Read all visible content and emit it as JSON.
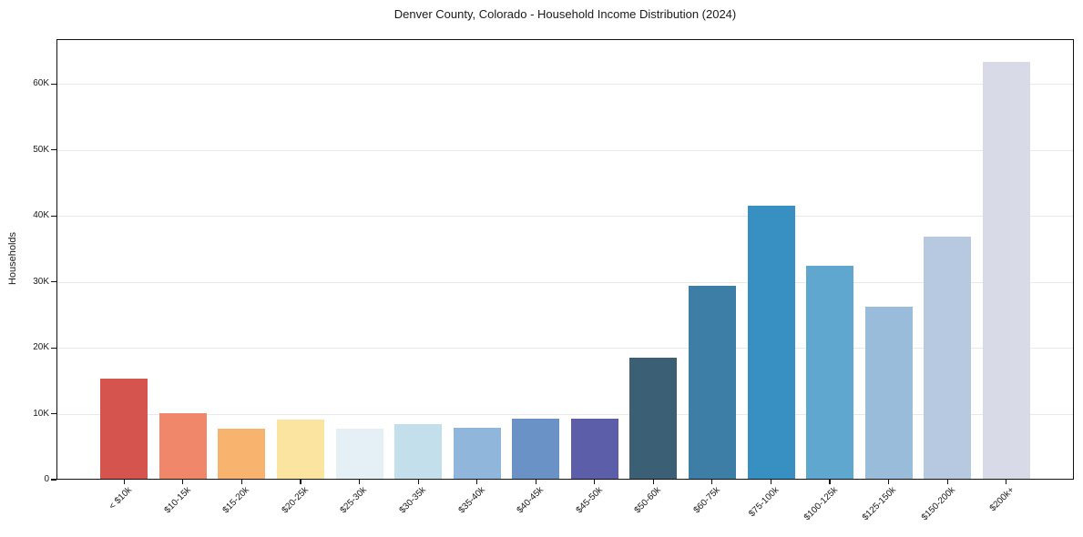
{
  "chart_data": {
    "type": "bar",
    "title": "Denver County, Colorado - Household Income Distribution (2024)",
    "xlabel": "",
    "ylabel": "Households",
    "categories": [
      "< $10k",
      "$10-15k",
      "$15-20k",
      "$20-25k",
      "$25-30k",
      "$30-35k",
      "$35-40k",
      "$40-45k",
      "$45-50k",
      "$50-60k",
      "$60-75k",
      "$75-100k",
      "$100-125k",
      "$125-150k",
      "$150-200k",
      "$200k+"
    ],
    "values": [
      15300,
      10100,
      7700,
      9100,
      7800,
      8400,
      7900,
      9300,
      9200,
      18500,
      29400,
      41500,
      32500,
      26200,
      36900,
      63300
    ],
    "bar_colors": [
      "#d6544e",
      "#f0876a",
      "#f8b36e",
      "#fbe3a0",
      "#e4f0f5",
      "#c2dfeb",
      "#90b7db",
      "#6a92c6",
      "#5c5ea9",
      "#3b5f74",
      "#3d7ea6",
      "#388fc2",
      "#5fa7cf",
      "#98bcda",
      "#b7c9e1",
      "#d9dae8"
    ],
    "yticks": [
      {
        "value": 0,
        "label": "0"
      },
      {
        "value": 10000,
        "label": "10K"
      },
      {
        "value": 20000,
        "label": "20K"
      },
      {
        "value": 30000,
        "label": "30K"
      },
      {
        "value": 40000,
        "label": "40K"
      },
      {
        "value": 50000,
        "label": "50K"
      },
      {
        "value": 60000,
        "label": "60K"
      }
    ],
    "ylim": [
      0,
      66800
    ],
    "grid": "horizontal",
    "legend": "none",
    "colors": {
      "background": "#ffffff",
      "spine": "#111111",
      "gridline": "#e9e9e9",
      "text": "#1a1a1a"
    }
  }
}
